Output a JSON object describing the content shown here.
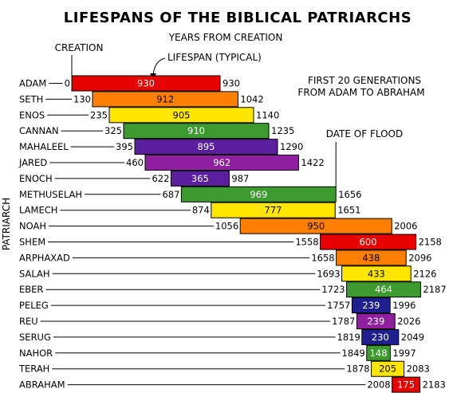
{
  "chart_data": {
    "type": "bar",
    "title": "LIFESPANS OF THE BIBLICAL PATRIARCHS",
    "subtitle": "YEARS FROM CREATION",
    "ylabel": "PATRIARCH",
    "annotations": {
      "creation": "CREATION",
      "lifespan": "LIFESPAN (TYPICAL)",
      "generations_line1": "FIRST 20 GENERATIONS",
      "generations_line2": "FROM ADAM TO ABRAHAM",
      "flood": "DATE OF FLOOD"
    },
    "flood_year": 1656,
    "xlim": [
      0,
      2200
    ],
    "series": [
      {
        "name": "ADAM",
        "start": 0,
        "lifespan": 930,
        "end": 930,
        "color": "#e60000"
      },
      {
        "name": "SETH",
        "start": 130,
        "lifespan": 912,
        "end": 1042,
        "color": "#ff7f00"
      },
      {
        "name": "ENOS",
        "start": 235,
        "lifespan": 905,
        "end": 1140,
        "color": "#ffe600"
      },
      {
        "name": "CANNAN",
        "start": 325,
        "lifespan": 910,
        "end": 1235,
        "color": "#3c9a2e"
      },
      {
        "name": "MAHALEEL",
        "start": 395,
        "lifespan": 895,
        "end": 1290,
        "color": "#5a1f9e"
      },
      {
        "name": "JARED",
        "start": 460,
        "lifespan": 962,
        "end": 1422,
        "color": "#8e1f9e"
      },
      {
        "name": "ENOCH",
        "start": 622,
        "lifespan": 365,
        "end": 987,
        "color": "#5a1f9e"
      },
      {
        "name": "METHUSELAH",
        "start": 687,
        "lifespan": 969,
        "end": 1656,
        "color": "#3c9a2e"
      },
      {
        "name": "LAMECH",
        "start": 874,
        "lifespan": 777,
        "end": 1651,
        "color": "#ffe600"
      },
      {
        "name": "NOAH",
        "start": 1056,
        "lifespan": 950,
        "end": 2006,
        "color": "#ff7f00"
      },
      {
        "name": "SHEM",
        "start": 1558,
        "lifespan": 600,
        "end": 2158,
        "color": "#e60000"
      },
      {
        "name": "ARPHAXAD",
        "start": 1658,
        "lifespan": 438,
        "end": 2096,
        "color": "#ff7f00"
      },
      {
        "name": "SALAH",
        "start": 1693,
        "lifespan": 433,
        "end": 2126,
        "color": "#ffe600"
      },
      {
        "name": "EBER",
        "start": 1723,
        "lifespan": 464,
        "end": 2187,
        "color": "#3c9a2e"
      },
      {
        "name": "PELEG",
        "start": 1757,
        "lifespan": 239,
        "end": 1996,
        "color": "#1f1f8e"
      },
      {
        "name": "REU",
        "start": 1787,
        "lifespan": 239,
        "end": 2026,
        "color": "#8e1f9e"
      },
      {
        "name": "SERUG",
        "start": 1819,
        "lifespan": 230,
        "end": 2049,
        "color": "#1f1f8e"
      },
      {
        "name": "NAHOR",
        "start": 1849,
        "lifespan": 148,
        "end": 1997,
        "color": "#3c9a2e"
      },
      {
        "name": "TERAH",
        "start": 1878,
        "lifespan": 205,
        "end": 2083,
        "color": "#ffe600"
      },
      {
        "name": "ABRAHAM",
        "start": 2008,
        "lifespan": 175,
        "end": 2183,
        "color": "#e60000"
      }
    ]
  }
}
